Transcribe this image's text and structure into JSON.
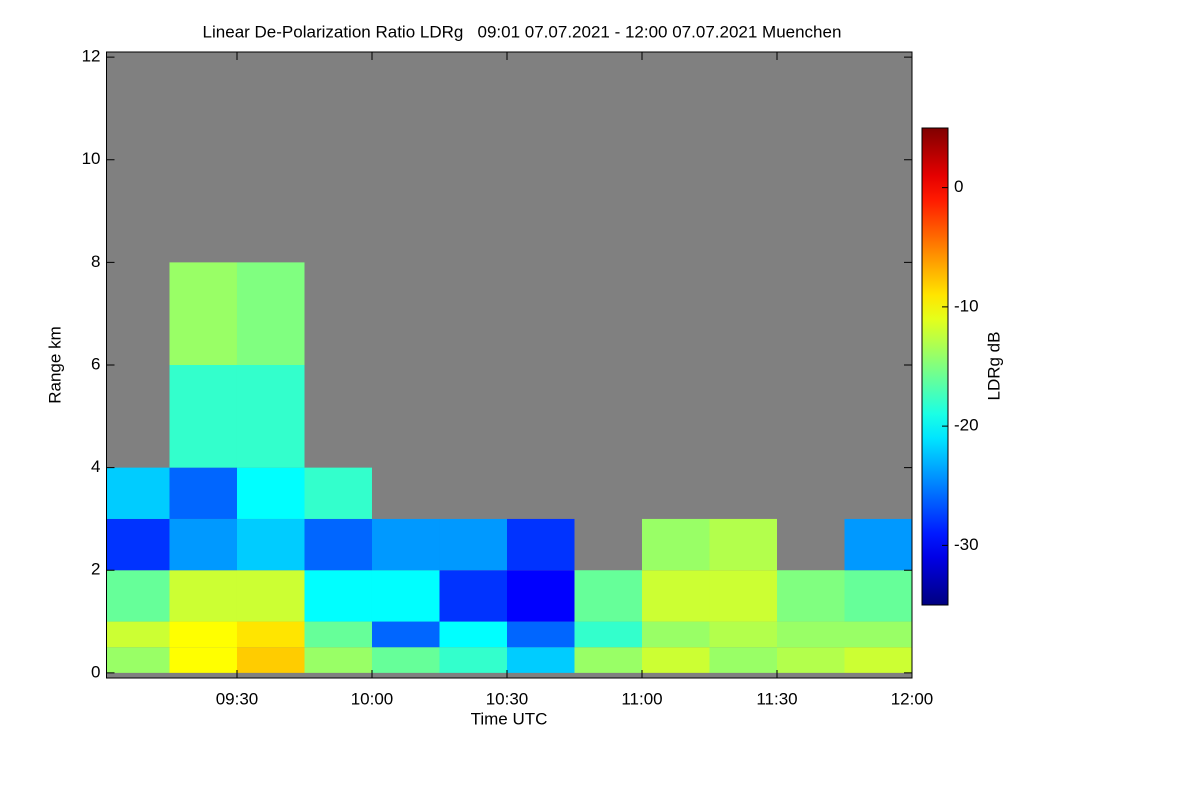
{
  "chart_data": {
    "type": "heatmap",
    "title": "Linear De-Polarization Ratio LDRg   09:01 07.07.2021 - 12:00 07.07.2021 Muenchen",
    "x_label": "Time UTC",
    "y_label": "Range km",
    "colorbar_label": "LDRg dB",
    "colormap": "jet",
    "background_color": "#808080",
    "x_bins": [
      9.0167,
      9.25,
      9.5,
      9.75,
      10.0,
      10.25,
      10.5,
      10.75,
      11.0,
      11.25,
      11.5,
      11.75,
      12.0
    ],
    "y_bins": [
      0,
      0.5,
      1,
      2,
      3,
      4,
      6,
      8,
      10,
      12
    ],
    "z": [
      [
        -14,
        -12,
        -16,
        -28,
        -22,
        null,
        null,
        null,
        null
      ],
      [
        -10,
        -10,
        -12,
        -24,
        -26,
        -18,
        -14,
        null,
        null
      ],
      [
        -8,
        -9,
        -12,
        -22,
        -20,
        -18,
        -15,
        null,
        null
      ],
      [
        -14,
        -16,
        -20,
        -26,
        -18,
        null,
        null,
        null,
        null
      ],
      [
        -16,
        -26,
        -20,
        -24,
        null,
        null,
        null,
        null,
        null
      ],
      [
        -18,
        -20,
        -28,
        -24,
        null,
        null,
        null,
        null,
        null
      ],
      [
        -22,
        -26,
        -30,
        -28,
        null,
        null,
        null,
        null,
        null
      ],
      [
        -14,
        -18,
        -16,
        null,
        null,
        null,
        null,
        null,
        null
      ],
      [
        -12,
        -14,
        -12,
        -14,
        null,
        null,
        null,
        null,
        null
      ],
      [
        -14,
        -13,
        -12,
        -13,
        null,
        null,
        null,
        null,
        null
      ],
      [
        -13,
        -14,
        -15,
        null,
        null,
        null,
        null,
        null,
        null
      ],
      [
        -12,
        -14,
        -16,
        -24,
        null,
        null,
        null,
        null,
        null
      ]
    ],
    "xlim": [
      9.0167,
      12.0
    ],
    "xticks": [
      {
        "value": 9.5,
        "label": "09:30"
      },
      {
        "value": 10.0,
        "label": "10:00"
      },
      {
        "value": 10.5,
        "label": "10:30"
      },
      {
        "value": 11.0,
        "label": "11:00"
      },
      {
        "value": 11.5,
        "label": "11:30"
      },
      {
        "value": 12.0,
        "label": "12:00"
      }
    ],
    "ylim": [
      -0.1,
      12.1
    ],
    "yticks": [
      0,
      2,
      4,
      6,
      8,
      10,
      12
    ],
    "zlim": [
      -35,
      5
    ],
    "zticks": [
      0,
      -10,
      -20,
      -30
    ]
  }
}
